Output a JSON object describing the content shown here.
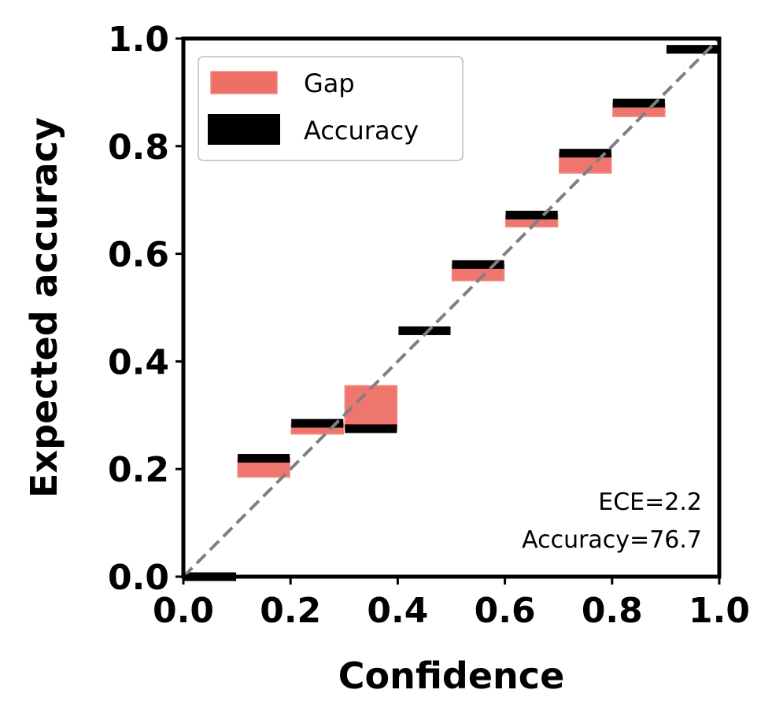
{
  "chart_data": {
    "type": "bar",
    "title": "",
    "xlabel": "Confidence",
    "ylabel": "Expected accuracy",
    "xlim": [
      0,
      1
    ],
    "ylim": [
      0,
      1
    ],
    "xticks": [
      "0.0",
      "0.2",
      "0.4",
      "0.6",
      "0.8",
      "1.0"
    ],
    "yticks": [
      "0.0",
      "0.2",
      "0.4",
      "0.6",
      "0.8",
      "1.0"
    ],
    "bin_width": 0.1,
    "bins": [
      {
        "start": 0.0,
        "accuracy": 0.0,
        "confidence": 0.0
      },
      {
        "start": 0.1,
        "accuracy": 0.22,
        "confidence": 0.185
      },
      {
        "start": 0.2,
        "accuracy": 0.285,
        "confidence": 0.265
      },
      {
        "start": 0.3,
        "accuracy": 0.275,
        "confidence": 0.355
      },
      {
        "start": 0.4,
        "accuracy": 0.457,
        "confidence": 0.457
      },
      {
        "start": 0.5,
        "accuracy": 0.58,
        "confidence": 0.55
      },
      {
        "start": 0.6,
        "accuracy": 0.672,
        "confidence": 0.65
      },
      {
        "start": 0.7,
        "accuracy": 0.787,
        "confidence": 0.75
      },
      {
        "start": 0.8,
        "accuracy": 0.88,
        "confidence": 0.855
      },
      {
        "start": 0.9,
        "accuracy": 0.98,
        "confidence": 0.98
      }
    ],
    "legend": {
      "position": "upper-left",
      "entries": [
        {
          "label": "Gap",
          "color": "#ee6f65"
        },
        {
          "label": "Accuracy",
          "color": "#000000"
        }
      ]
    },
    "annotations": [
      "ECE=2.2",
      "Accuracy=76.7"
    ],
    "diagonal": {
      "style": "dashed",
      "color": "#808080"
    },
    "colors": {
      "gap": "#ee6f65",
      "accuracy": "#000000",
      "diagonal": "#808080"
    }
  }
}
